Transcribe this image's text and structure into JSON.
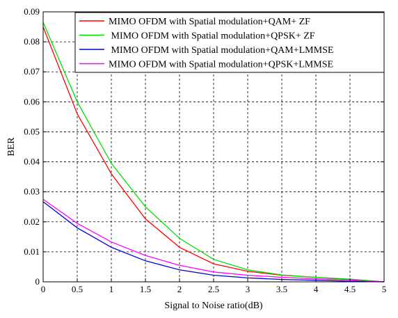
{
  "chart_data": {
    "type": "line",
    "title": "",
    "xlabel": "Signal to Noise ratio(dB)",
    "ylabel": "BER",
    "xlim": [
      0,
      5
    ],
    "ylim": [
      0,
      0.09
    ],
    "xticks": [
      "0",
      "0.5",
      "1",
      "1.5",
      "2",
      "2.5",
      "3",
      "3.5",
      "4",
      "4.5",
      "5"
    ],
    "xtick_values": [
      0,
      0.5,
      1,
      1.5,
      2,
      2.5,
      3,
      3.5,
      4,
      4.5,
      5
    ],
    "yticks": [
      "0",
      "0.01",
      "0.02",
      "0.03",
      "0.04",
      "0.05",
      "0.06",
      "0.07",
      "0.08",
      "0.09"
    ],
    "ytick_values": [
      0,
      0.01,
      0.02,
      0.03,
      0.04,
      0.05,
      0.06,
      0.07,
      0.08,
      0.09
    ],
    "grid": true,
    "legend_position": "top-right",
    "x": [
      0,
      0.5,
      1,
      1.5,
      2,
      2.5,
      3,
      3.5,
      4,
      4.5,
      5
    ],
    "series": [
      {
        "name": "MIMO OFDM with Spatial modulation+QAM+ ZF",
        "color": "#ff0000",
        "values": [
          0.085,
          0.056,
          0.036,
          0.021,
          0.0115,
          0.006,
          0.0035,
          0.0022,
          0.0015,
          0.0008,
          0.0
        ]
      },
      {
        "name": " MIMO OFDM with Spatial modulation+QPSK+ ZF",
        "color": "#00dd00",
        "values": [
          0.0865,
          0.06,
          0.0395,
          0.025,
          0.0145,
          0.0075,
          0.004,
          0.0023,
          0.0015,
          0.0009,
          0.0
        ]
      },
      {
        "name": " MIMO OFDM with Spatial modulation+QAM+LMMSE",
        "color": "#0000cc",
        "values": [
          0.0267,
          0.018,
          0.0115,
          0.007,
          0.004,
          0.0022,
          0.0013,
          0.0008,
          0.0005,
          0.0002,
          0.0
        ]
      },
      {
        "name": "MIMO OFDM with Spatial modulation+QPSK+LMMSE",
        "color": "#ff00ff",
        "values": [
          0.0275,
          0.0195,
          0.0133,
          0.0088,
          0.0055,
          0.0033,
          0.0022,
          0.0015,
          0.001,
          0.0006,
          0.0
        ]
      }
    ]
  }
}
